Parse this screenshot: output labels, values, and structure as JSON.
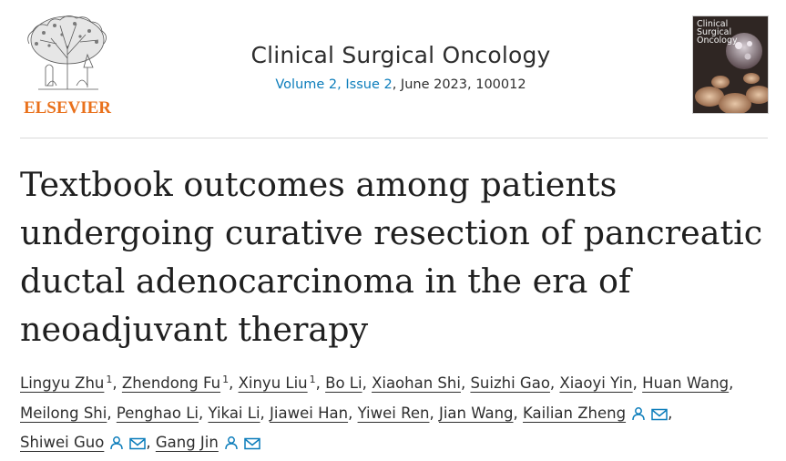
{
  "publisher": {
    "logo_text": "ELSEVIER",
    "logo_icon": "elsevier-tree-icon"
  },
  "journal": {
    "title": "Clinical Surgical Oncology",
    "volume_issue": "Volume 2, Issue 2",
    "date_article": ", June 2023, 100012",
    "cover_text_1": "Clinical",
    "cover_text_2": "Surgical",
    "cover_text_3": "Oncology"
  },
  "article": {
    "title_line_1": "Textbook outcomes among patients",
    "title_line_2": "undergoing curative resection of pancreatic",
    "title_line_3": "ductal adenocarcinoma in the era of",
    "title_line_4": "neoadjuvant therapy"
  },
  "authors": [
    {
      "name": "Lingyu Zhu",
      "sup": "1"
    },
    {
      "name": "Zhendong Fu",
      "sup": "1"
    },
    {
      "name": "Xinyu Liu",
      "sup": "1"
    },
    {
      "name": "Bo Li"
    },
    {
      "name": "Xiaohan Shi"
    },
    {
      "name": "Suizhi Gao"
    },
    {
      "name": "Xiaoyi Yin"
    },
    {
      "name": "Huan Wang"
    },
    {
      "name": "Meilong Shi"
    },
    {
      "name": "Penghao Li"
    },
    {
      "name": "Yikai Li"
    },
    {
      "name": "Jiawei Han"
    },
    {
      "name": "Yiwei Ren"
    },
    {
      "name": "Jian Wang"
    },
    {
      "name": "Kailian Zheng",
      "icons": [
        "person-icon",
        "mail-icon"
      ]
    },
    {
      "name": "Shiwei Guo",
      "icons": [
        "person-icon",
        "mail-icon"
      ]
    },
    {
      "name": "Gang Jin",
      "icons": [
        "person-icon",
        "mail-icon"
      ]
    }
  ],
  "separator": ",",
  "colors": {
    "link": "#0c7dbb",
    "elsevier_orange": "#e9711c",
    "text": "#1f1f1f"
  }
}
